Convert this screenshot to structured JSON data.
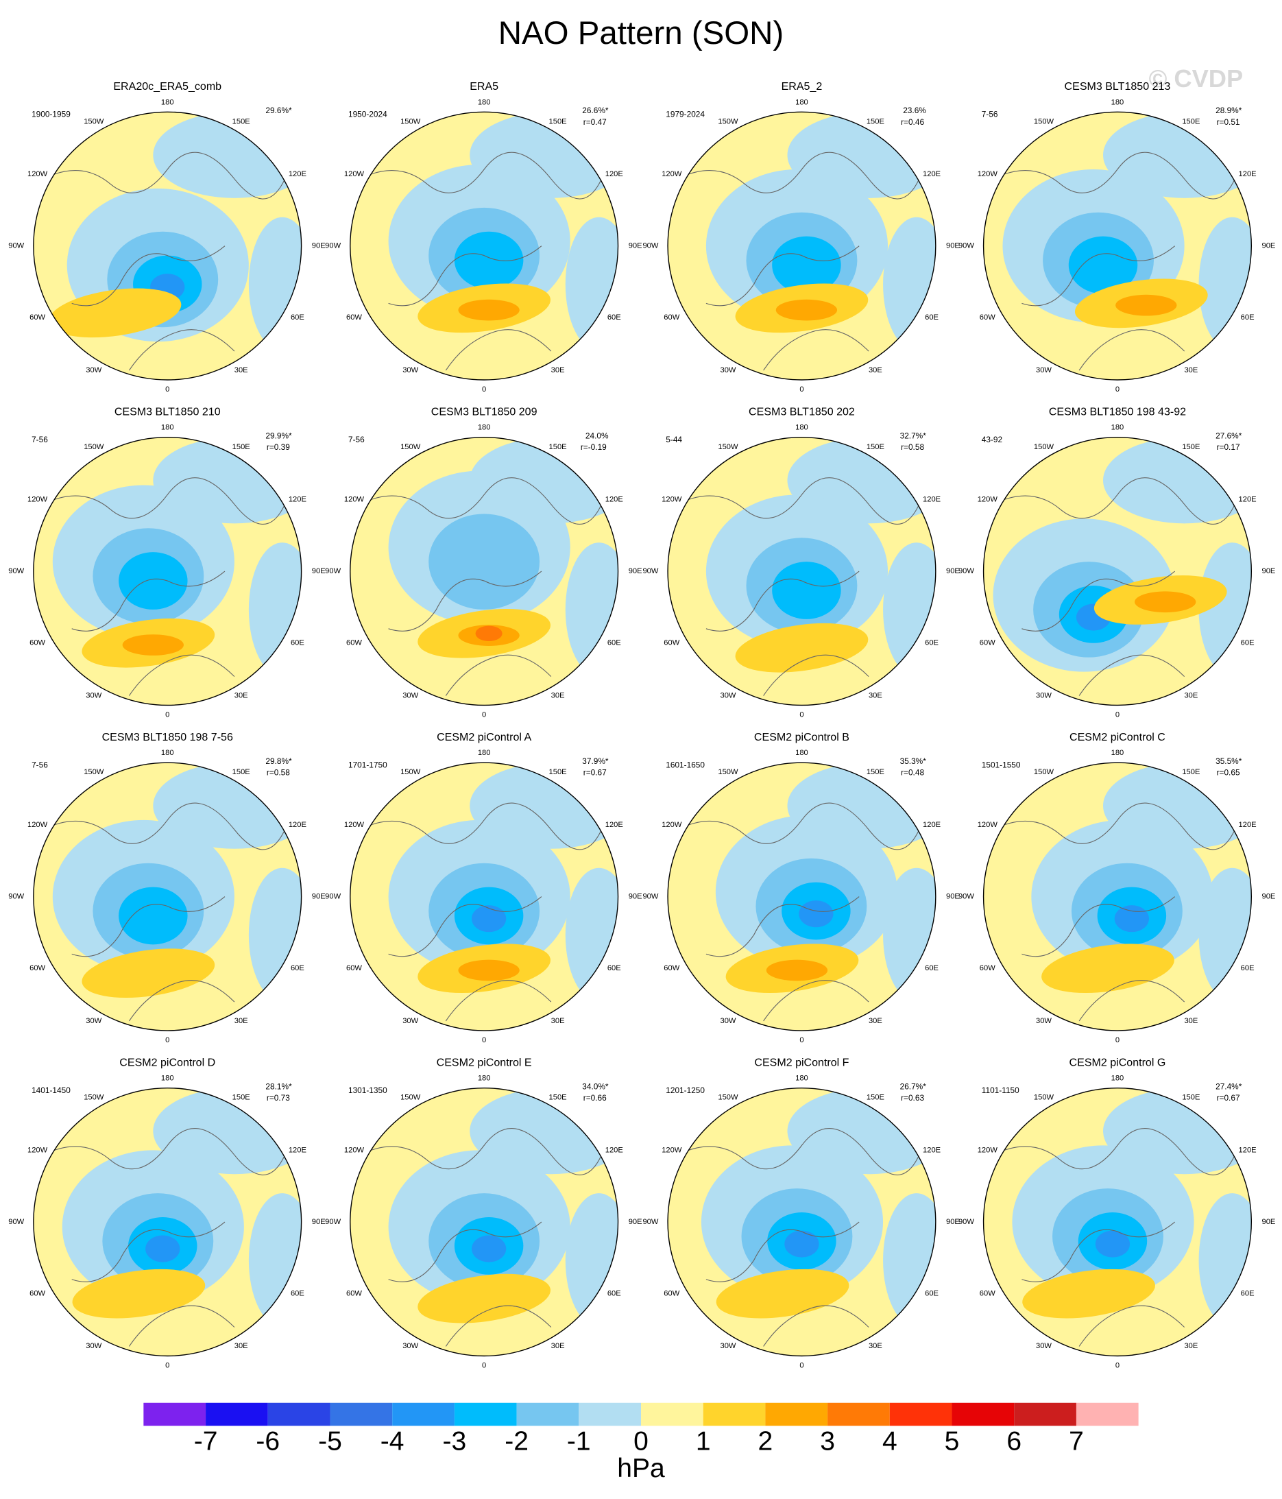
{
  "title": "NAO Pattern (SON)",
  "watermark": "© CVDP",
  "panels": [
    {
      "title": "ERA20c_ERA5_comb",
      "period": "1900-1959",
      "pct": "29.6%*"
    },
    {
      "title": "ERA5",
      "period": "1950-2024",
      "pct": "26.6%*",
      "r": "r=0.47"
    },
    {
      "title": "ERA5_2",
      "period": "1979-2024",
      "pct": "23.6%",
      "r": "r=0.46"
    },
    {
      "title": "CESM3 BLT1850 213",
      "period": "7-56",
      "pct": "28.9%*",
      "r": "r=0.51"
    },
    {
      "title": "CESM3 BLT1850 210",
      "period": "7-56",
      "pct": "29.9%*",
      "r": "r=0.39"
    },
    {
      "title": "CESM3 BLT1850 209",
      "period": "7-56",
      "pct": "24.0%",
      "r": "r=-0.19"
    },
    {
      "title": "CESM3 BLT1850 202",
      "period": "5-44",
      "pct": "32.7%*",
      "r": "r=0.58"
    },
    {
      "title": "CESM3 BLT1850 198 43-92",
      "period": "43-92",
      "pct": "27.6%*",
      "r": "r=0.17"
    },
    {
      "title": "CESM3 BLT1850 198 7-56",
      "period": "7-56",
      "pct": "29.8%*",
      "r": "r=0.58"
    },
    {
      "title": "CESM2 piControl A",
      "period": "1701-1750",
      "pct": "37.9%*",
      "r": "r=0.67"
    },
    {
      "title": "CESM2 piControl B",
      "period": "1601-1650",
      "pct": "35.3%*",
      "r": "r=0.48"
    },
    {
      "title": "CESM2 piControl C",
      "period": "1501-1550",
      "pct": "35.5%*",
      "r": "r=0.65"
    },
    {
      "title": "CESM2 piControl D",
      "period": "1401-1450",
      "pct": "28.1%*",
      "r": "r=0.73"
    },
    {
      "title": "CESM2 piControl E",
      "period": "1301-1350",
      "pct": "34.0%*",
      "r": "r=0.66"
    },
    {
      "title": "CESM2 piControl F",
      "period": "1201-1250",
      "pct": "26.7%*",
      "r": "r=0.63"
    },
    {
      "title": "CESM2 piControl G",
      "period": "1101-1150",
      "pct": "27.4%*",
      "r": "r=0.67"
    }
  ],
  "lon_labels": [
    "180",
    "150E",
    "120E",
    "90E",
    "60E",
    "30E",
    "0",
    "30W",
    "60W",
    "90W",
    "120W",
    "150W"
  ],
  "colorbar": {
    "colors": [
      "#7d22ee",
      "#1a10f2",
      "#2a44e6",
      "#3474e6",
      "#2296f6",
      "#00bcfc",
      "#76c6f0",
      "#b2def2",
      "#fff59c",
      "#ffd42c",
      "#ffa802",
      "#ff7a06",
      "#ff3208",
      "#e60406",
      "#cc1e1e",
      "#ffb2b2"
    ],
    "ticks": [
      -7,
      -6,
      -5,
      -4,
      -3,
      -2,
      -1,
      0,
      1,
      2,
      3,
      4,
      5,
      6,
      7
    ],
    "unit": "hPa"
  }
}
